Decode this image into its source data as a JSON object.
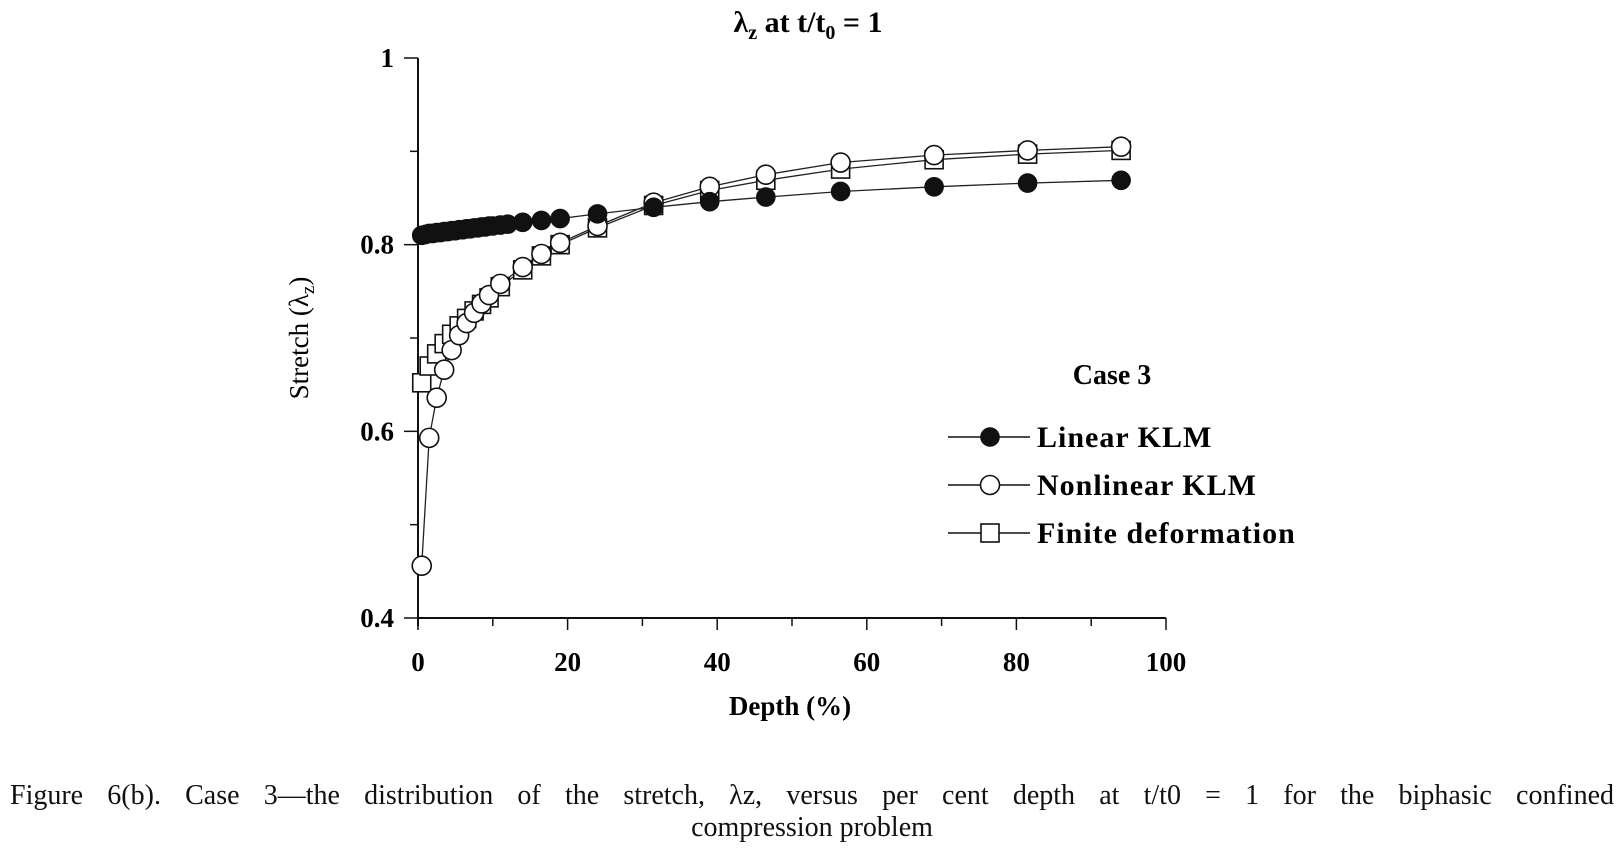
{
  "chart_data": {
    "type": "line",
    "title": "λz at t/t0 = 1",
    "xlabel": "Depth (%)",
    "ylabel": "Stretch (λz)",
    "xlim": [
      0,
      100
    ],
    "ylim": [
      0.4,
      1.0
    ],
    "xticks": [
      0,
      20,
      40,
      60,
      80,
      100
    ],
    "yticks": [
      0.4,
      0.6,
      0.8,
      1.0
    ],
    "xtick_labels": [
      "0",
      "20",
      "40",
      "60",
      "80",
      "100"
    ],
    "ytick_labels": [
      "0.4",
      "0.6",
      "0.8",
      "1"
    ],
    "legend_title": "Case 3",
    "grid": false,
    "series": [
      {
        "name": "Linear KLM",
        "marker": "filled-circle",
        "x": [
          0.5,
          1,
          1.5,
          2,
          2.5,
          3,
          3.5,
          4,
          4.5,
          5,
          5.5,
          6,
          6.5,
          7,
          7.5,
          8,
          8.5,
          9,
          9.5,
          10,
          11,
          12,
          14,
          16.5,
          19,
          24,
          31.5,
          39,
          46.5,
          56.5,
          69,
          81.5,
          94
        ],
        "y": [
          0.81,
          0.811,
          0.812,
          0.812,
          0.813,
          0.813,
          0.814,
          0.814,
          0.815,
          0.815,
          0.816,
          0.816,
          0.817,
          0.817,
          0.818,
          0.818,
          0.819,
          0.819,
          0.82,
          0.82,
          0.821,
          0.822,
          0.824,
          0.826,
          0.828,
          0.833,
          0.84,
          0.846,
          0.851,
          0.857,
          0.862,
          0.866,
          0.869
        ]
      },
      {
        "name": "Nonlinear KLM",
        "marker": "open-circle",
        "x": [
          0.5,
          1.5,
          2.5,
          3.5,
          4.5,
          5.5,
          6.5,
          7.5,
          8.5,
          9.5,
          11,
          14,
          16.5,
          19,
          24,
          31.5,
          39,
          46.5,
          56.5,
          69,
          81.5,
          94
        ],
        "y": [
          0.456,
          0.593,
          0.636,
          0.666,
          0.687,
          0.703,
          0.716,
          0.727,
          0.737,
          0.746,
          0.758,
          0.776,
          0.79,
          0.802,
          0.82,
          0.845,
          0.862,
          0.875,
          0.888,
          0.896,
          0.901,
          0.905
        ]
      },
      {
        "name": "Finite deformation",
        "marker": "open-square",
        "x": [
          0.5,
          1.5,
          2.5,
          3.5,
          4.5,
          5.5,
          6.5,
          7.5,
          8.5,
          9.5,
          11,
          14,
          16.5,
          19,
          24,
          31.5,
          39,
          46.5,
          56.5,
          69,
          81.5,
          94
        ],
        "y": [
          0.652,
          0.67,
          0.683,
          0.694,
          0.704,
          0.713,
          0.721,
          0.729,
          0.736,
          0.743,
          0.755,
          0.773,
          0.788,
          0.8,
          0.818,
          0.842,
          0.858,
          0.869,
          0.881,
          0.891,
          0.897,
          0.901
        ]
      }
    ]
  },
  "caption": {
    "line1": "Figure 6(b). Case 3—the distribution of the stretch, λz, versus per cent depth at t/t0 = 1 for the biphasic confined",
    "line2": "compression problem"
  }
}
